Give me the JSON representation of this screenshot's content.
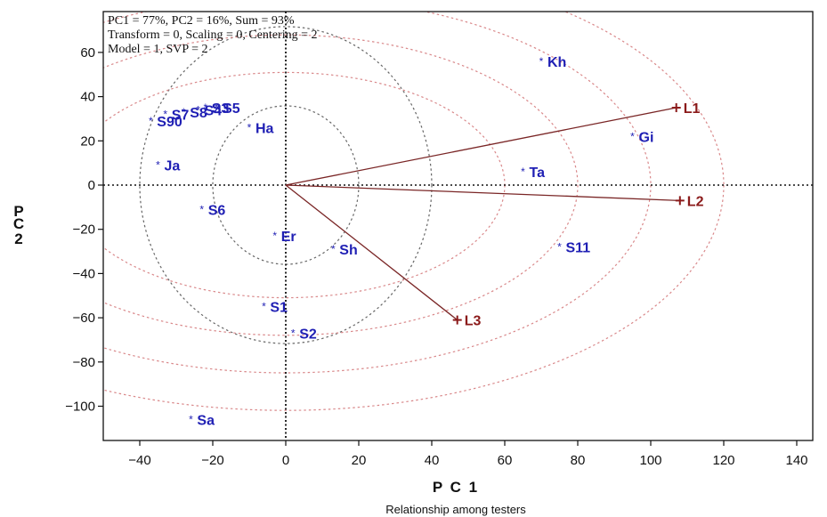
{
  "chart_data": {
    "type": "scatter",
    "info_lines": [
      "PC1 = 77%, PC2 = 16%, Sum = 93%",
      "Transform = 0, Scaling = 0, Centering = 2",
      "Model = 1, SVP = 2"
    ],
    "xlabel": "P C 1",
    "ylabel": "P C 2",
    "caption": "Relationship among testers",
    "xlim": [
      -50,
      150
    ],
    "ylim": [
      -116,
      77
    ],
    "xticks": [
      -40,
      -20,
      0,
      20,
      40,
      60,
      80,
      100,
      120,
      140
    ],
    "yticks": [
      60,
      40,
      20,
      0,
      -20,
      -40,
      -60,
      -80,
      -100
    ],
    "circles_inner": [
      20,
      40
    ],
    "circles_outer": [
      60,
      80,
      100,
      120
    ],
    "genotypes": [
      {
        "label": "Kh",
        "x": 70,
        "y": 56
      },
      {
        "label": "Gi",
        "x": 95,
        "y": 22
      },
      {
        "label": "Ta",
        "x": 65,
        "y": 6
      },
      {
        "label": "S11",
        "x": 75,
        "y": -28
      },
      {
        "label": "Ha",
        "x": -10,
        "y": 26
      },
      {
        "label": "Ja",
        "x": -35,
        "y": 9
      },
      {
        "label": "S6",
        "x": -23,
        "y": -11
      },
      {
        "label": "Er",
        "x": -3,
        "y": -23
      },
      {
        "label": "Sh",
        "x": 13,
        "y": -29
      },
      {
        "label": "S1",
        "x": -6,
        "y": -55
      },
      {
        "label": "S2",
        "x": 2,
        "y": -67
      },
      {
        "label": "Sa",
        "x": -26,
        "y": -106
      },
      {
        "label": "S90",
        "x": -37,
        "y": 29
      },
      {
        "label": "S7",
        "x": -33,
        "y": 32
      },
      {
        "label": "S8",
        "x": -28,
        "y": 33
      },
      {
        "label": "S4",
        "x": -24,
        "y": 34
      },
      {
        "label": "S3",
        "x": -22,
        "y": 35
      },
      {
        "label": "S5",
        "x": -19,
        "y": 35
      }
    ],
    "testers": [
      {
        "label": "L1",
        "x": 107,
        "y": 35
      },
      {
        "label": "L2",
        "x": 108,
        "y": -7
      },
      {
        "label": "L3",
        "x": 47,
        "y": -61
      }
    ]
  },
  "colors": {
    "genotype": "#1f1fb4",
    "tester": "#8b1a1a",
    "vector": "#7a2626",
    "circle_inner": "#666666",
    "circle_outer": "#d9888a",
    "axis": "#111111"
  }
}
